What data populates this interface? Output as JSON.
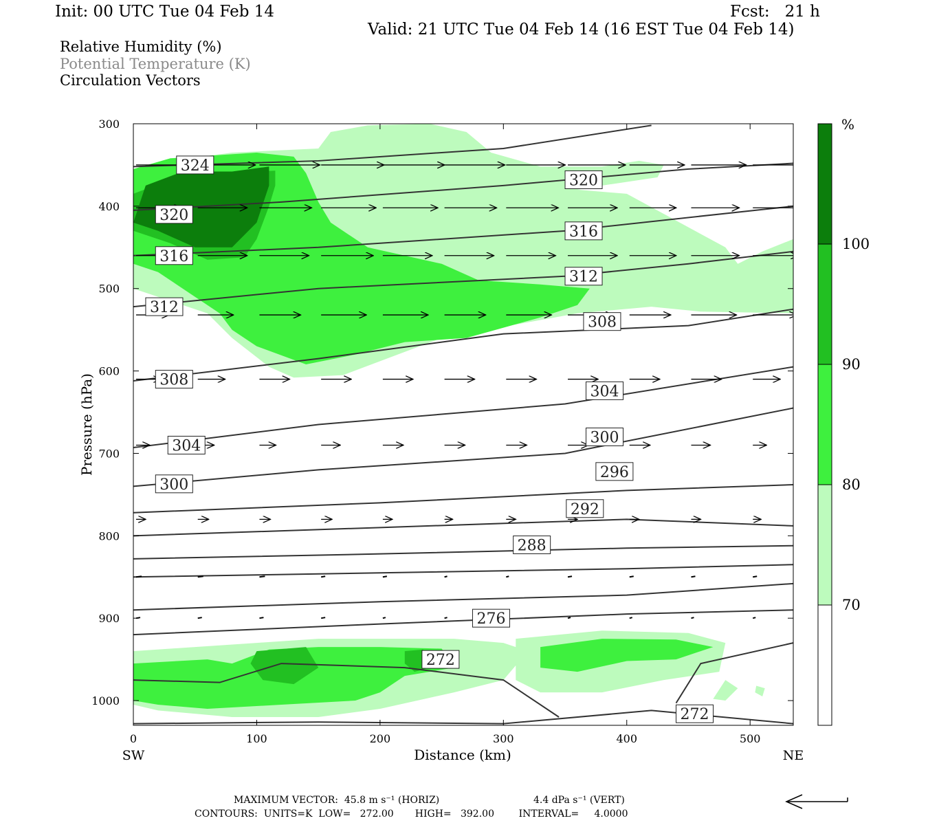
{
  "header": {
    "init": "Init: 00 UTC Tue 04 Feb 14",
    "fcst": "Fcst:   21 h",
    "valid": "Valid: 21 UTC Tue 04 Feb 14 (16 EST Tue 04 Feb 14)",
    "fields": [
      "Relative Humidity (%)",
      "Potential Temperature (K)",
      "Circulation Vectors"
    ]
  },
  "footer": {
    "max_vector": "MAXIMUM VECTOR:  45.8 m s⁻¹ (HORIZ)",
    "max_vert": "4.4 dPa s⁻¹ (VERT)",
    "contours": "CONTOURS:  UNITS=K  LOW=   272.00       HIGH=   392.00        INTERVAL=     4.0000"
  },
  "chart_data": {
    "type": "contour",
    "xlabel": "Distance (km)",
    "ylabel": "Pressure (hPa)",
    "xlim": [
      0,
      535
    ],
    "ylim": [
      1030,
      300
    ],
    "x_ticks": [
      0,
      100,
      200,
      300,
      400,
      500
    ],
    "y_ticks": [
      300,
      400,
      500,
      600,
      700,
      800,
      900,
      1000
    ],
    "x_end_labels": {
      "left": "SW",
      "right": "NE"
    },
    "colorbar": {
      "unit": "%",
      "levels": [
        70,
        80,
        90,
        100
      ],
      "colors": [
        "#ffffff",
        "#bdfbbd",
        "#3ef03e",
        "#22c022",
        "#0c7e0c"
      ]
    },
    "theta_contours": [
      {
        "value": 324,
        "points": [
          [
            0,
            352
          ],
          [
            150,
            345
          ],
          [
            300,
            330
          ],
          [
            420,
            302
          ]
        ]
      },
      {
        "value": 320,
        "points": [
          [
            0,
            405
          ],
          [
            120,
            395
          ],
          [
            300,
            375
          ],
          [
            450,
            355
          ],
          [
            535,
            348
          ]
        ]
      },
      {
        "value": 316,
        "points": [
          [
            0,
            460
          ],
          [
            150,
            450
          ],
          [
            350,
            430
          ],
          [
            535,
            400
          ]
        ]
      },
      {
        "value": 312,
        "points": [
          [
            0,
            522
          ],
          [
            150,
            500
          ],
          [
            350,
            485
          ],
          [
            450,
            470
          ],
          [
            535,
            455
          ]
        ]
      },
      {
        "value": 308,
        "points": [
          [
            0,
            612
          ],
          [
            150,
            585
          ],
          [
            300,
            555
          ],
          [
            450,
            545
          ],
          [
            535,
            525
          ]
        ]
      },
      {
        "value": 304,
        "points": [
          [
            0,
            693
          ],
          [
            150,
            665
          ],
          [
            350,
            640
          ],
          [
            535,
            595
          ]
        ]
      },
      {
        "value": 300,
        "points": [
          [
            0,
            740
          ],
          [
            150,
            720
          ],
          [
            350,
            700
          ],
          [
            535,
            645
          ]
        ]
      },
      {
        "value": 296,
        "points": [
          [
            0,
            772
          ],
          [
            200,
            760
          ],
          [
            400,
            745
          ],
          [
            535,
            738
          ]
        ]
      },
      {
        "value": 292,
        "points": [
          [
            0,
            800
          ],
          [
            200,
            790
          ],
          [
            400,
            780
          ],
          [
            535,
            788
          ]
        ]
      },
      {
        "value": 288,
        "points": [
          [
            0,
            828
          ],
          [
            200,
            822
          ],
          [
            400,
            815
          ],
          [
            535,
            812
          ]
        ]
      },
      {
        "value": 284,
        "points": [
          [
            0,
            850
          ],
          [
            200,
            845
          ],
          [
            400,
            840
          ],
          [
            535,
            835
          ]
        ]
      },
      {
        "value": 280,
        "points": [
          [
            0,
            890
          ],
          [
            200,
            880
          ],
          [
            400,
            872
          ],
          [
            535,
            858
          ]
        ]
      },
      {
        "value": 276,
        "points": [
          [
            0,
            920
          ],
          [
            200,
            907
          ],
          [
            400,
            895
          ],
          [
            535,
            890
          ]
        ]
      },
      {
        "value": 272,
        "points": [
          [
            0,
            975
          ],
          [
            70,
            978
          ],
          [
            120,
            955
          ],
          [
            220,
            960
          ],
          [
            300,
            975
          ],
          [
            345,
            1020
          ]
        ]
      },
      {
        "value": 272,
        "points": [
          [
            440,
            1003
          ],
          [
            460,
            955
          ],
          [
            535,
            930
          ]
        ]
      },
      {
        "value": 272,
        "points": [
          [
            0,
            1028
          ],
          [
            150,
            1026
          ],
          [
            300,
            1028
          ],
          [
            420,
            1012
          ],
          [
            535,
            1028
          ]
        ]
      }
    ],
    "theta_labels": [
      {
        "text": "324",
        "x": 35,
        "p": 350
      },
      {
        "text": "320",
        "x": 18,
        "p": 410
      },
      {
        "text": "316",
        "x": 18,
        "p": 460
      },
      {
        "text": "312",
        "x": 10,
        "p": 522
      },
      {
        "text": "308",
        "x": 18,
        "p": 610
      },
      {
        "text": "304",
        "x": 28,
        "p": 690
      },
      {
        "text": "300",
        "x": 18,
        "p": 737
      },
      {
        "text": "320",
        "x": 350,
        "p": 368
      },
      {
        "text": "316",
        "x": 350,
        "p": 430
      },
      {
        "text": "312",
        "x": 350,
        "p": 485
      },
      {
        "text": "308",
        "x": 365,
        "p": 540
      },
      {
        "text": "304",
        "x": 367,
        "p": 624
      },
      {
        "text": "300",
        "x": 367,
        "p": 680
      },
      {
        "text": "296",
        "x": 375,
        "p": 722
      },
      {
        "text": "292",
        "x": 351,
        "p": 767
      },
      {
        "text": "288",
        "x": 308,
        "p": 811
      },
      {
        "text": "276",
        "x": 275,
        "p": 900
      },
      {
        "text": "272",
        "x": 234,
        "p": 950
      },
      {
        "text": "272",
        "x": 440,
        "p": 1016
      }
    ],
    "rh_regions": [
      {
        "level": 70,
        "points": [
          [
            0,
            370
          ],
          [
            30,
            345
          ],
          [
            80,
            335
          ],
          [
            150,
            330
          ],
          [
            160,
            310
          ],
          [
            190,
            302
          ],
          [
            240,
            300
          ],
          [
            270,
            310
          ],
          [
            290,
            335
          ],
          [
            330,
            352
          ],
          [
            380,
            352
          ],
          [
            410,
            345
          ],
          [
            430,
            350
          ],
          [
            425,
            365
          ],
          [
            380,
            375
          ],
          [
            360,
            380
          ],
          [
            400,
            385
          ],
          [
            480,
            450
          ],
          [
            490,
            470
          ],
          [
            510,
            455
          ],
          [
            535,
            440
          ],
          [
            535,
            530
          ],
          [
            460,
            528
          ],
          [
            420,
            522
          ],
          [
            360,
            530
          ],
          [
            250,
            560
          ],
          [
            170,
            605
          ],
          [
            130,
            608
          ],
          [
            110,
            595
          ],
          [
            80,
            560
          ],
          [
            60,
            530
          ],
          [
            20,
            510
          ],
          [
            0,
            500
          ]
        ]
      },
      {
        "level": 80,
        "points": [
          [
            0,
            355
          ],
          [
            30,
            342
          ],
          [
            70,
            338
          ],
          [
            100,
            335
          ],
          [
            130,
            340
          ],
          [
            140,
            360
          ],
          [
            150,
            395
          ],
          [
            160,
            420
          ],
          [
            190,
            450
          ],
          [
            250,
            470
          ],
          [
            280,
            490
          ],
          [
            330,
            495
          ],
          [
            370,
            500
          ],
          [
            360,
            520
          ],
          [
            330,
            535
          ],
          [
            270,
            560
          ],
          [
            220,
            565
          ],
          [
            180,
            580
          ],
          [
            140,
            592
          ],
          [
            100,
            570
          ],
          [
            80,
            550
          ],
          [
            70,
            530
          ],
          [
            50,
            510
          ],
          [
            20,
            480
          ],
          [
            0,
            470
          ]
        ]
      },
      {
        "level": 90,
        "points": [
          [
            0,
            385
          ],
          [
            30,
            368
          ],
          [
            60,
            360
          ],
          [
            115,
            357
          ],
          [
            115,
            375
          ],
          [
            110,
            400
          ],
          [
            100,
            440
          ],
          [
            90,
            462
          ],
          [
            60,
            465
          ],
          [
            30,
            445
          ],
          [
            0,
            430
          ]
        ]
      },
      {
        "level": 100,
        "points": [
          [
            10,
            375
          ],
          [
            40,
            358
          ],
          [
            80,
            358
          ],
          [
            110,
            352
          ],
          [
            110,
            375
          ],
          [
            100,
            420
          ],
          [
            80,
            450
          ],
          [
            50,
            450
          ],
          [
            20,
            430
          ],
          [
            0,
            420
          ]
        ]
      },
      {
        "level": 70,
        "points": [
          [
            0,
            940
          ],
          [
            50,
            935
          ],
          [
            100,
            930
          ],
          [
            150,
            925
          ],
          [
            200,
            925
          ],
          [
            260,
            925
          ],
          [
            300,
            930
          ],
          [
            320,
            940
          ],
          [
            300,
            975
          ],
          [
            260,
            990
          ],
          [
            200,
            1010
          ],
          [
            150,
            1020
          ],
          [
            80,
            1020
          ],
          [
            20,
            1012
          ],
          [
            0,
            1005
          ]
        ]
      },
      {
        "level": 80,
        "points": [
          [
            0,
            955
          ],
          [
            60,
            950
          ],
          [
            80,
            955
          ],
          [
            110,
            938
          ],
          [
            150,
            935
          ],
          [
            200,
            935
          ],
          [
            250,
            937
          ],
          [
            260,
            960
          ],
          [
            220,
            970
          ],
          [
            200,
            990
          ],
          [
            180,
            1000
          ],
          [
            120,
            1005
          ],
          [
            60,
            1010
          ],
          [
            20,
            1005
          ],
          [
            0,
            1000
          ]
        ]
      },
      {
        "level": 90,
        "points": [
          [
            100,
            940
          ],
          [
            140,
            935
          ],
          [
            150,
            960
          ],
          [
            130,
            980
          ],
          [
            105,
            975
          ],
          [
            95,
            955
          ]
        ]
      },
      {
        "level": 90,
        "points": [
          [
            220,
            940
          ],
          [
            235,
            938
          ],
          [
            240,
            960
          ],
          [
            228,
            965
          ],
          [
            220,
            955
          ]
        ]
      },
      {
        "level": 70,
        "points": [
          [
            310,
            925
          ],
          [
            380,
            915
          ],
          [
            450,
            918
          ],
          [
            480,
            930
          ],
          [
            475,
            965
          ],
          [
            430,
            975
          ],
          [
            380,
            990
          ],
          [
            330,
            990
          ],
          [
            310,
            975
          ]
        ]
      },
      {
        "level": 80,
        "points": [
          [
            330,
            935
          ],
          [
            380,
            925
          ],
          [
            440,
            926
          ],
          [
            470,
            935
          ],
          [
            440,
            950
          ],
          [
            400,
            952
          ],
          [
            360,
            965
          ],
          [
            330,
            960
          ]
        ]
      },
      {
        "level": 70,
        "points": [
          [
            480,
            975
          ],
          [
            490,
            985
          ],
          [
            480,
            1000
          ],
          [
            470,
            998
          ]
        ]
      },
      {
        "level": 70,
        "points": [
          [
            505,
            982
          ],
          [
            512,
            985
          ],
          [
            510,
            995
          ],
          [
            504,
            990
          ]
        ]
      }
    ],
    "vectors_sample": [
      {
        "x": 0,
        "p": 350,
        "u": 40
      },
      {
        "x": 200,
        "p": 350,
        "u": 45.8
      },
      {
        "x": 0,
        "p": 400,
        "u": 35
      },
      {
        "x": 200,
        "p": 400,
        "u": 40
      },
      {
        "x": 200,
        "p": 460,
        "u": 38
      },
      {
        "x": 200,
        "p": 530,
        "u": 35
      },
      {
        "x": 200,
        "p": 610,
        "u": 22
      },
      {
        "x": 200,
        "p": 690,
        "u": 12
      },
      {
        "x": 200,
        "p": 780,
        "u": 6
      },
      {
        "x": 200,
        "p": 850,
        "u": 2
      }
    ]
  }
}
